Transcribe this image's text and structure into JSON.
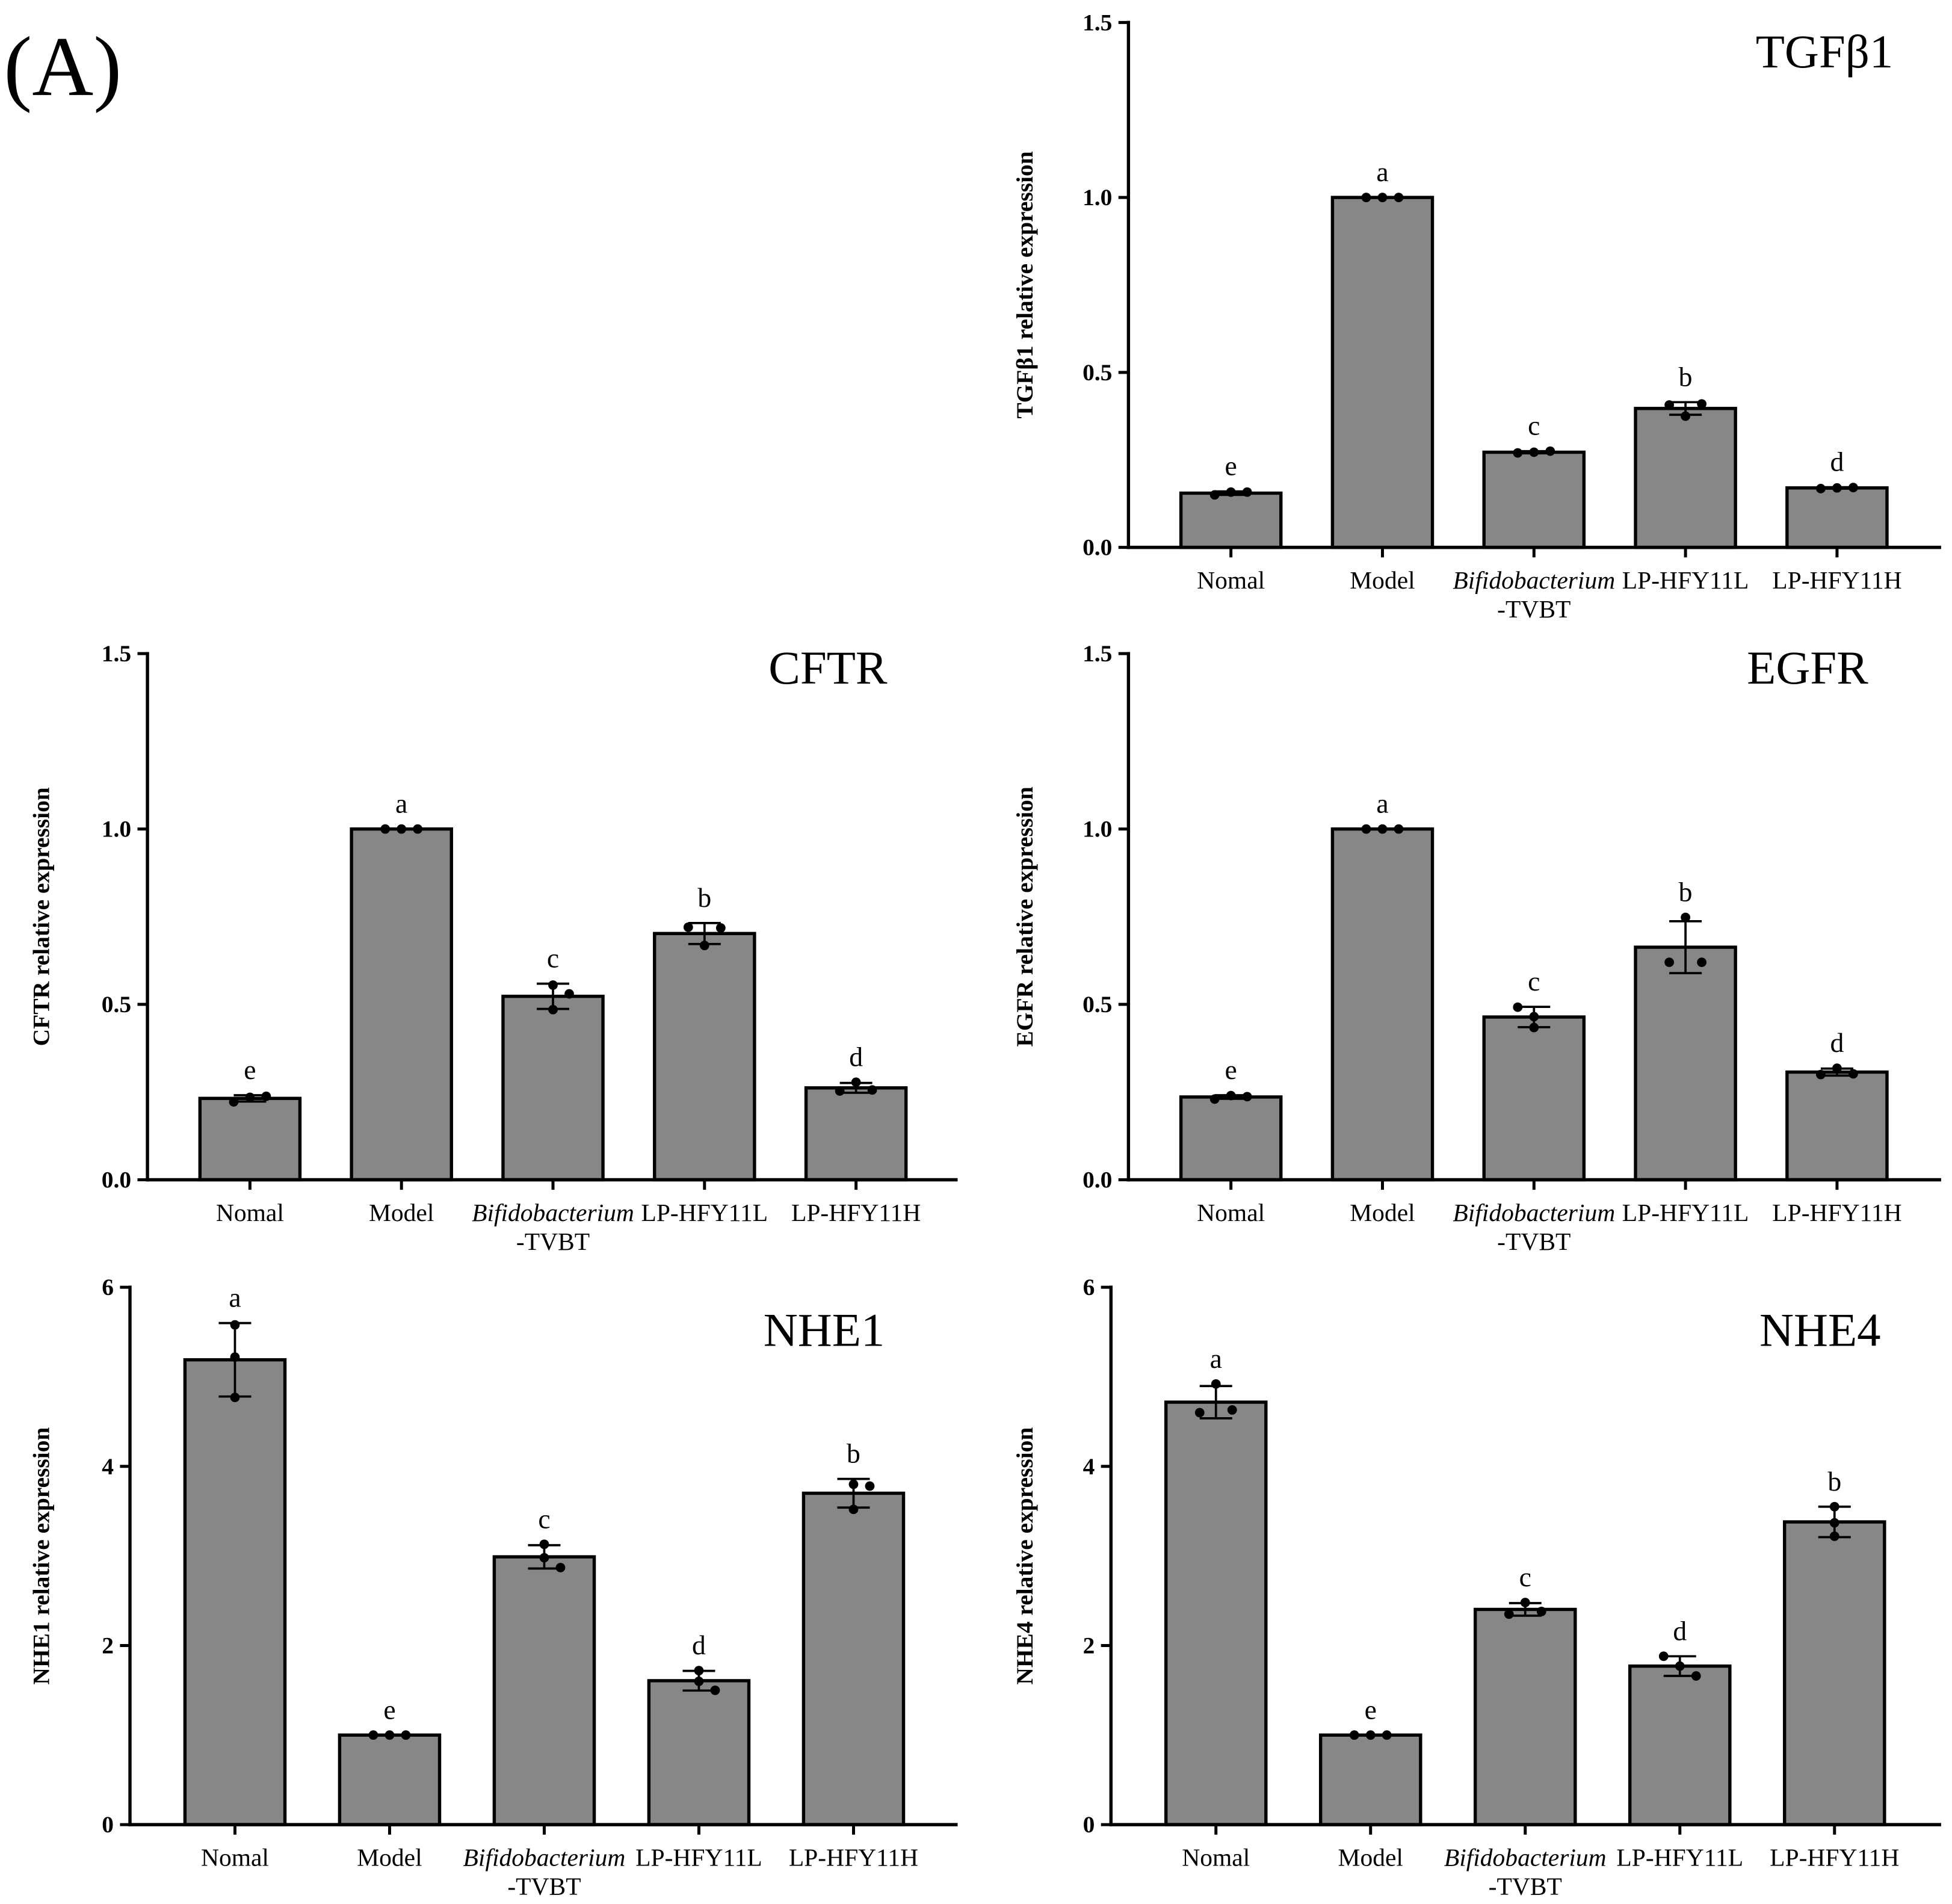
{
  "panel_label": "(A)",
  "colors": {
    "bar_fill": "#878787",
    "outline": "#000000"
  },
  "chart_data": [
    {
      "type": "bar",
      "title": "TGFβ1",
      "xlabel": "",
      "ylabel": "TGFβ1 relative expression",
      "ylim": [
        0,
        1.5
      ],
      "yticks": [
        0,
        0.5,
        1.0,
        1.5
      ],
      "ytick_labels": [
        "0.0",
        "0.5",
        "1.0",
        "1.5"
      ],
      "categories": [
        [
          "Nomal"
        ],
        [
          "Model"
        ],
        [
          "Bifidobacterium",
          "-TVBT"
        ],
        [
          "LP-HFY11L"
        ],
        [
          "LP-HFY11H"
        ]
      ],
      "values": [
        0.155,
        1.0,
        0.272,
        0.397,
        0.17
      ],
      "error": [
        0.005,
        0,
        0.003,
        0.018,
        0.002
      ],
      "points": [
        [
          0.15,
          0.158,
          0.158
        ],
        [
          1.0,
          1.0,
          1.0
        ],
        [
          0.27,
          0.272,
          0.275
        ],
        [
          0.407,
          0.375,
          0.41
        ],
        [
          0.168,
          0.17,
          0.171
        ]
      ],
      "letters": [
        "e",
        "a",
        "c",
        "b",
        "d"
      ]
    },
    {
      "type": "bar",
      "title": "CFTR",
      "xlabel": "",
      "ylabel": "CFTR relative expression",
      "ylim": [
        0,
        1.5
      ],
      "yticks": [
        0,
        0.5,
        1.0,
        1.5
      ],
      "ytick_labels": [
        "0.0",
        "0.5",
        "1.0",
        "1.5"
      ],
      "categories": [
        [
          "Nomal"
        ],
        [
          "Model"
        ],
        [
          "Bifidobacterium",
          "-TVBT"
        ],
        [
          "LP-HFY11L"
        ],
        [
          "LP-HFY11H"
        ]
      ],
      "values": [
        0.232,
        1.0,
        0.523,
        0.702,
        0.262
      ],
      "error": [
        0.009,
        0,
        0.036,
        0.03,
        0.014
      ],
      "points": [
        [
          0.222,
          0.235,
          0.238
        ],
        [
          1.0,
          1.0,
          1.0
        ],
        [
          0.485,
          0.555,
          0.53
        ],
        [
          0.72,
          0.668,
          0.718
        ],
        [
          0.253,
          0.278,
          0.256
        ]
      ],
      "letters": [
        "e",
        "a",
        "c",
        "b",
        "d"
      ]
    },
    {
      "type": "bar",
      "title": "EGFR",
      "xlabel": "",
      "ylabel": "EGFR relative expression",
      "ylim": [
        0,
        1.5
      ],
      "yticks": [
        0,
        0.5,
        1.0,
        1.5
      ],
      "ytick_labels": [
        "0.0",
        "0.5",
        "1.0",
        "1.5"
      ],
      "categories": [
        [
          "Nomal"
        ],
        [
          "Model"
        ],
        [
          "Bifidobacterium",
          "-TVBT"
        ],
        [
          "LP-HFY11L"
        ],
        [
          "LP-HFY11H"
        ]
      ],
      "values": [
        0.236,
        1.0,
        0.464,
        0.663,
        0.307
      ],
      "error": [
        0.005,
        0,
        0.029,
        0.074,
        0.01
      ],
      "points": [
        [
          0.23,
          0.24,
          0.237
        ],
        [
          1.0,
          1.0,
          1.0
        ],
        [
          0.492,
          0.465,
          0.434
        ],
        [
          0.62,
          0.748,
          0.62
        ],
        [
          0.3,
          0.318,
          0.302
        ]
      ],
      "letters": [
        "e",
        "a",
        "c",
        "b",
        "d"
      ]
    },
    {
      "type": "bar",
      "title": "NHE1",
      "xlabel": "",
      "ylabel": "NHE1 relative expression",
      "ylim": [
        0,
        6
      ],
      "yticks": [
        0,
        2,
        4,
        6
      ],
      "ytick_labels": [
        "0",
        "2",
        "4",
        "6"
      ],
      "categories": [
        [
          "Nomal"
        ],
        [
          "Model"
        ],
        [
          "Bifidobacterium",
          "-TVBT"
        ],
        [
          "LP-HFY11L"
        ],
        [
          "LP-HFY11H"
        ]
      ],
      "values": [
        5.19,
        1.0,
        2.99,
        1.607,
        3.7
      ],
      "error": [
        0.41,
        0,
        0.13,
        0.11,
        0.16
      ],
      "points": [
        [
          5.58,
          5.22,
          4.77
        ],
        [
          1.0,
          1.0,
          1.0
        ],
        [
          3.13,
          2.98,
          2.87
        ],
        [
          1.72,
          1.6,
          1.5
        ],
        [
          3.52,
          3.8,
          3.78
        ]
      ],
      "letters": [
        "a",
        "e",
        "c",
        "d",
        "b"
      ]
    },
    {
      "type": "bar",
      "title": "NHE4",
      "xlabel": "",
      "ylabel": "NHE4 relative expression",
      "ylim": [
        0,
        6
      ],
      "yticks": [
        0,
        2,
        4,
        6
      ],
      "ytick_labels": [
        "0",
        "2",
        "4",
        "6"
      ],
      "categories": [
        [
          "Nomal"
        ],
        [
          "Model"
        ],
        [
          "Bifidobacterium",
          "-TVBT"
        ],
        [
          "LP-HFY11L"
        ],
        [
          "LP-HFY11H"
        ]
      ],
      "values": [
        4.717,
        1.0,
        2.403,
        1.77,
        3.38
      ],
      "error": [
        0.18,
        0,
        0.07,
        0.11,
        0.17
      ],
      "points": [
        [
          4.6,
          4.92,
          4.63
        ],
        [
          1.0,
          1.0,
          1.0
        ],
        [
          2.35,
          2.48,
          2.38
        ],
        [
          1.88,
          1.77,
          1.66
        ],
        [
          3.55,
          3.37,
          3.22
        ]
      ],
      "letters": [
        "a",
        "e",
        "c",
        "d",
        "b"
      ]
    }
  ]
}
